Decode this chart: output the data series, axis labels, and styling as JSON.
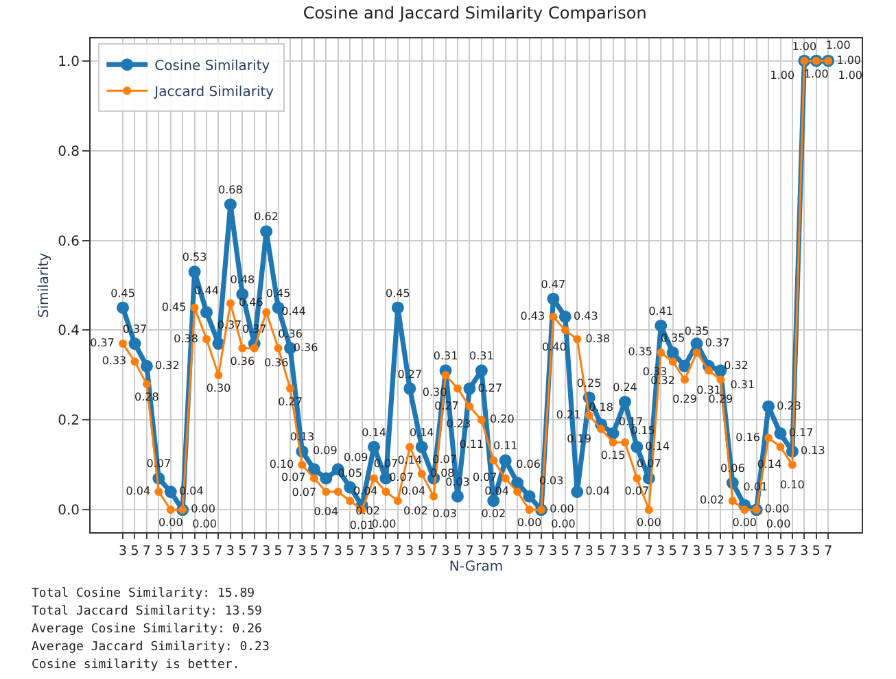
{
  "chart_data": {
    "type": "line",
    "title": "Cosine and Jaccard Similarity Comparison",
    "xlabel": "N-Gram",
    "ylabel": "Similarity",
    "categories": [
      "3",
      "5",
      "7",
      "3",
      "5",
      "7",
      "3",
      "5",
      "7",
      "3",
      "5",
      "7",
      "3",
      "5",
      "7",
      "3",
      "5",
      "7",
      "3",
      "5",
      "7",
      "3",
      "5",
      "7",
      "3",
      "5",
      "7",
      "3",
      "5",
      "7",
      "3",
      "5",
      "7",
      "3",
      "5",
      "7",
      "3",
      "5",
      "7",
      "3",
      "5",
      "7",
      "3",
      "5",
      "7",
      "3",
      "5",
      "7",
      "3",
      "5",
      "7",
      "3",
      "5",
      "7",
      "3",
      "5",
      "7",
      "3",
      "5",
      "7"
    ],
    "series": [
      {
        "name": "Cosine Similarity",
        "color": "#1f77b4",
        "values": [
          0.45,
          0.37,
          0.32,
          0.07,
          0.04,
          0.0,
          0.53,
          0.44,
          0.37,
          0.68,
          0.48,
          0.37,
          0.62,
          0.45,
          0.36,
          0.13,
          0.09,
          0.07,
          0.09,
          0.05,
          0.01,
          0.14,
          0.07,
          0.45,
          0.27,
          0.14,
          0.07,
          0.31,
          0.03,
          0.27,
          0.31,
          0.02,
          0.11,
          0.06,
          0.03,
          0.0,
          0.47,
          0.43,
          0.04,
          0.25,
          0.19,
          0.17,
          0.24,
          0.14,
          0.07,
          0.41,
          0.35,
          0.32,
          0.37,
          0.32,
          0.31,
          0.06,
          0.01,
          0.0,
          0.23,
          0.17,
          0.13,
          1.0,
          1.0,
          1.0
        ],
        "value_labels": [
          "0.45",
          "0.37",
          "0.32",
          "0.07",
          "0.04",
          "0.00",
          "0.53",
          "0.44",
          "0.37",
          "0.68",
          "0.48",
          "0.37",
          "0.62",
          "0.45",
          "0.36",
          "0.13",
          "0.09",
          "0.07",
          "0.09",
          "0.05",
          "0.01",
          "0.14",
          "0.07",
          "0.45",
          "0.27",
          "0.14",
          "0.07",
          "0.31",
          "0.03",
          "0.27",
          "0.31",
          "0.02",
          "0.11",
          "0.06",
          "0.03",
          "0.00",
          "0.47",
          "0.43",
          "0.04",
          "0.25",
          "0.19",
          "0.17",
          "0.24",
          "0.14",
          "0.07",
          "0.41",
          "0.35",
          "0.32",
          "0.37",
          "0.32",
          "0.31",
          "0.06",
          "0.01",
          "0.00",
          "0.23",
          "0.17",
          "0.13",
          "1.00",
          "1.00",
          "1.00"
        ]
      },
      {
        "name": "Jaccard Similarity",
        "color": "#ff7f0e",
        "values": [
          0.37,
          0.33,
          0.28,
          0.04,
          0.0,
          0.0,
          0.45,
          0.38,
          0.3,
          0.46,
          0.36,
          0.36,
          0.44,
          0.36,
          0.27,
          0.1,
          0.07,
          0.04,
          0.04,
          0.02,
          0.0,
          0.07,
          0.04,
          0.02,
          0.14,
          0.08,
          0.03,
          0.3,
          0.27,
          0.23,
          0.2,
          0.11,
          0.07,
          0.04,
          0.0,
          0.0,
          0.43,
          0.4,
          0.38,
          0.21,
          0.18,
          0.15,
          0.15,
          0.07,
          0.0,
          0.35,
          0.33,
          0.29,
          0.35,
          0.31,
          0.29,
          0.02,
          0.0,
          0.0,
          0.16,
          0.14,
          0.1,
          1.0,
          1.0,
          1.0
        ],
        "value_labels": [
          "0.37",
          "0.33",
          "0.28",
          "0.04",
          "0.00",
          "0.00",
          "0.45",
          "0.38",
          "0.30",
          "0.46",
          "0.36",
          "0.36",
          "0.44",
          "0.36",
          "0.27",
          "0.10",
          "0.07",
          "0.04",
          "0.04",
          "0.02",
          "0.00",
          "0.07",
          "0.04",
          "0.02",
          "0.14",
          "0.08",
          "0.03",
          "0.30",
          "0.27",
          "0.23",
          "0.20",
          "0.11",
          "0.07",
          "0.04",
          "0.00",
          "0.00",
          "0.43",
          "0.40",
          "0.38",
          "0.21",
          "0.18",
          "0.15",
          "0.15",
          "0.07",
          "0.00",
          "0.35",
          "0.33",
          "0.29",
          "0.35",
          "0.31",
          "0.29",
          "0.02",
          "0.00",
          "0.00",
          "0.16",
          "0.14",
          "0.10",
          "1.00",
          "1.00",
          "1.00"
        ]
      }
    ],
    "ylim": [
      -0.05,
      1.05
    ],
    "yticks": [
      {
        "value": 0,
        "label": "0.0"
      },
      {
        "value": 0.2,
        "label": "0.2"
      },
      {
        "value": 0.4,
        "label": "0.4"
      },
      {
        "value": 0.6,
        "label": "0.6"
      },
      {
        "value": 0.8,
        "label": "0.8"
      },
      {
        "value": 1.0,
        "label": "1.0"
      }
    ],
    "grid": true,
    "legend": "top left",
    "marker": "circle",
    "line_style": "solid",
    "annotations": [
      "Total Cosine Similarity: 15.89",
      "Total Jaccard Similarity: 13.59",
      "Average Cosine Similarity: 0.26",
      "Average Jaccard Similarity: 0.23",
      "Cosine similarity is better."
    ]
  }
}
